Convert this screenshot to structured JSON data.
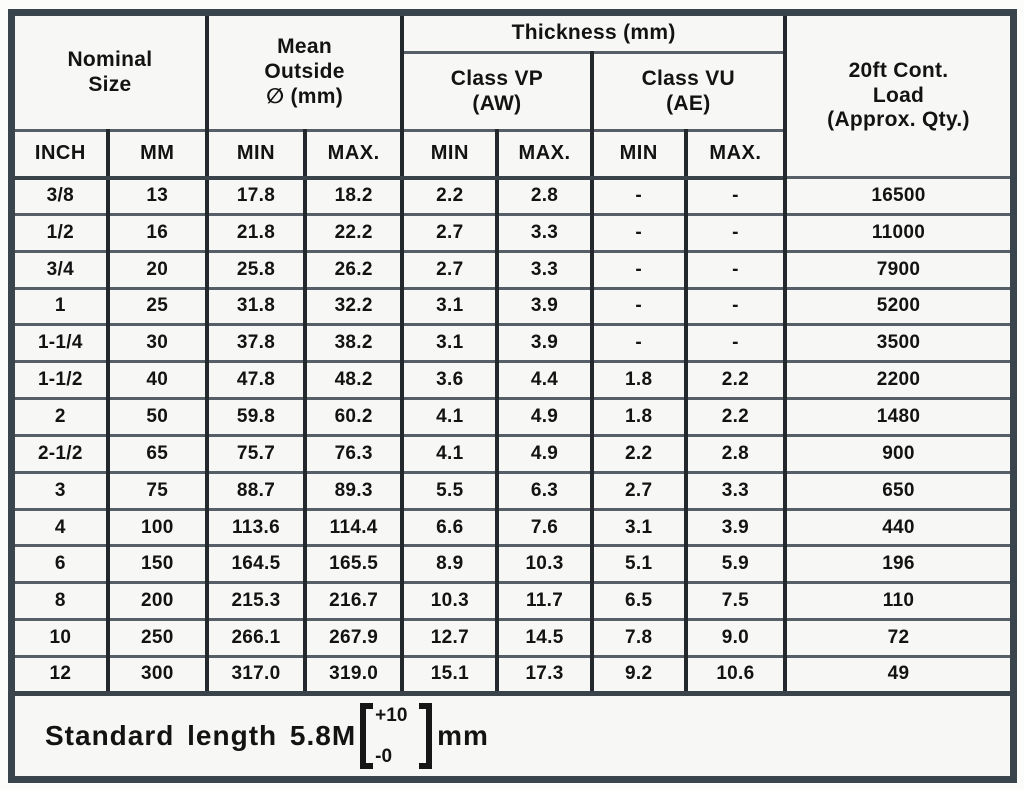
{
  "header": {
    "nominal_size": "Nominal\nSize",
    "mean_outside": "Mean\nOutside\n∅ (mm)",
    "thickness": "Thickness (mm)",
    "class_vp": "Class VP\n(AW)",
    "class_vu": "Class VU\n(AE)",
    "load": "20ft Cont.\nLoad\n(Approx. Qty.)",
    "sub_columns": [
      "INCH",
      "MM",
      "MIN",
      "MAX.",
      "MIN",
      "MAX.",
      "MIN",
      "MAX."
    ]
  },
  "rows": [
    [
      "3/8",
      "13",
      "17.8",
      "18.2",
      "2.2",
      "2.8",
      "-",
      "-",
      "16500"
    ],
    [
      "1/2",
      "16",
      "21.8",
      "22.2",
      "2.7",
      "3.3",
      "-",
      "-",
      "11000"
    ],
    [
      "3/4",
      "20",
      "25.8",
      "26.2",
      "2.7",
      "3.3",
      "-",
      "-",
      "7900"
    ],
    [
      "1",
      "25",
      "31.8",
      "32.2",
      "3.1",
      "3.9",
      "-",
      "-",
      "5200"
    ],
    [
      "1-1/4",
      "30",
      "37.8",
      "38.2",
      "3.1",
      "3.9",
      "-",
      "-",
      "3500"
    ],
    [
      "1-1/2",
      "40",
      "47.8",
      "48.2",
      "3.6",
      "4.4",
      "1.8",
      "2.2",
      "2200"
    ],
    [
      "2",
      "50",
      "59.8",
      "60.2",
      "4.1",
      "4.9",
      "1.8",
      "2.2",
      "1480"
    ],
    [
      "2-1/2",
      "65",
      "75.7",
      "76.3",
      "4.1",
      "4.9",
      "2.2",
      "2.8",
      "900"
    ],
    [
      "3",
      "75",
      "88.7",
      "89.3",
      "5.5",
      "6.3",
      "2.7",
      "3.3",
      "650"
    ],
    [
      "4",
      "100",
      "113.6",
      "114.4",
      "6.6",
      "7.6",
      "3.1",
      "3.9",
      "440"
    ],
    [
      "6",
      "150",
      "164.5",
      "165.5",
      "8.9",
      "10.3",
      "5.1",
      "5.9",
      "196"
    ],
    [
      "8",
      "200",
      "215.3",
      "216.7",
      "10.3",
      "11.7",
      "6.5",
      "7.5",
      "110"
    ],
    [
      "10",
      "250",
      "266.1",
      "267.9",
      "12.7",
      "14.5",
      "7.8",
      "9.0",
      "72"
    ],
    [
      "12",
      "300",
      "317.0",
      "319.0",
      "15.1",
      "17.3",
      "9.2",
      "10.6",
      "49"
    ]
  ],
  "footer": {
    "label": "Standard length 5.8M",
    "tolerance_plus": "+10",
    "tolerance_minus": "-0",
    "unit": "mm"
  },
  "colors": {
    "frame_border": "#3a444c",
    "vertical_line": "#23282d",
    "horizontal_line": "#565f67",
    "cell_background": "#f7f7f5",
    "text": "#131313"
  }
}
